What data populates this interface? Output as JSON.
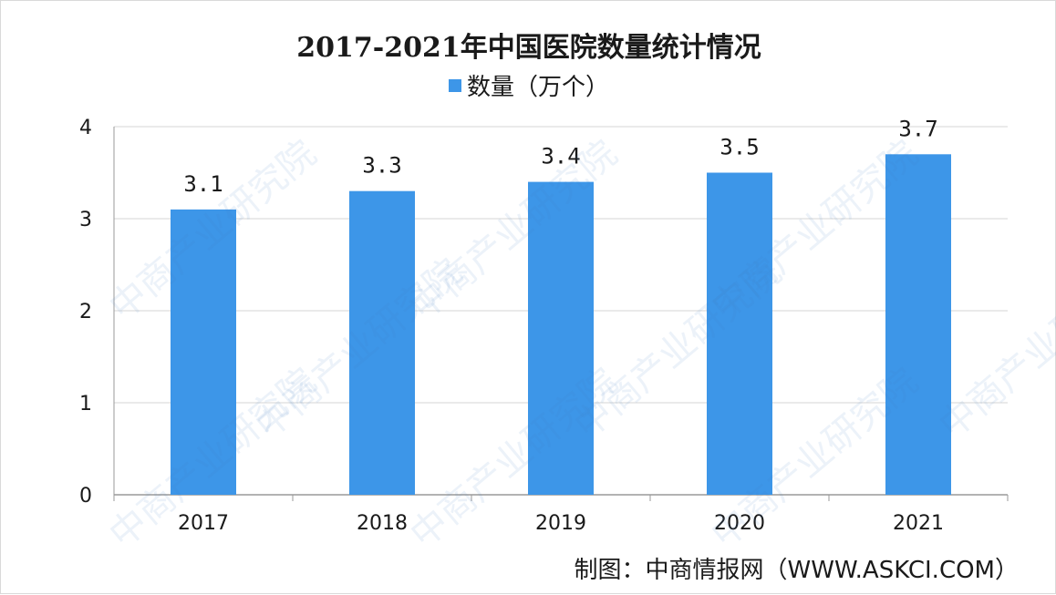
{
  "source": "制图：中商情报网（WWW.ASKCI.COM）",
  "watermark": "中商产业研究院",
  "colors": {
    "bar": "#3d96e8",
    "grid": "#d6d6d6",
    "axis": "#9a9a9a",
    "text": "#1a1a1a"
  },
  "chart_data": {
    "type": "bar",
    "title": "2017-2021年中国医院数量统计情况",
    "xlabel": "",
    "ylabel": "",
    "categories": [
      "2017",
      "2018",
      "2019",
      "2020",
      "2021"
    ],
    "series": [
      {
        "name": "数量（万个）",
        "values": [
          3.1,
          3.3,
          3.4,
          3.5,
          3.7
        ],
        "labels": [
          "3.1",
          "3.3",
          "3.4",
          "3.5",
          "3.7"
        ]
      }
    ],
    "ylim": [
      0,
      4
    ],
    "yticks": [
      "0",
      "1",
      "2",
      "3",
      "4"
    ],
    "grid": true,
    "legend": "top-center"
  }
}
